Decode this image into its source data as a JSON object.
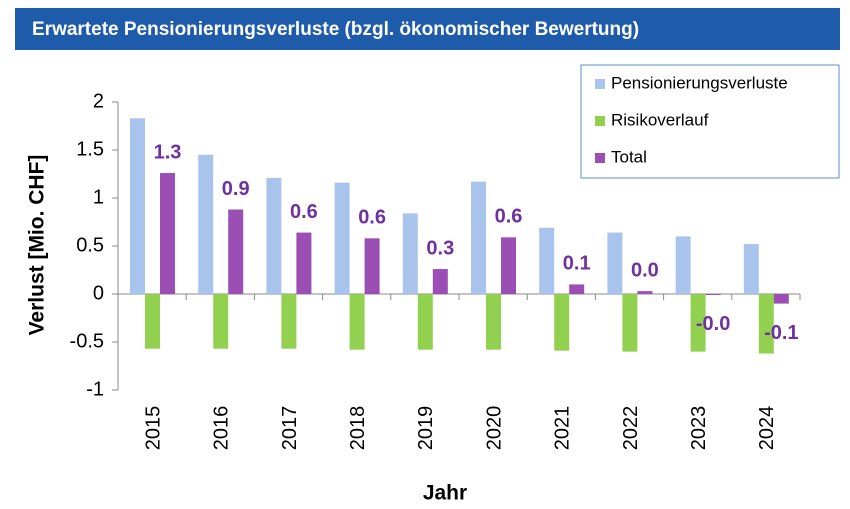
{
  "chart_data": {
    "type": "bar",
    "title": "Erwartete Pensionierungsverluste (bzgl. ökonomischer Bewertung)",
    "y_label": "Verlust [Mio. CHF]",
    "x_label": "Jahr",
    "categories": [
      "2015",
      "2016",
      "2017",
      "2018",
      "2019",
      "2020",
      "2021",
      "2022",
      "2023",
      "2024"
    ],
    "series": [
      {
        "name": "Pensionierungsverluste",
        "color": "#a9c4ec",
        "values": [
          1.83,
          1.45,
          1.21,
          1.16,
          0.84,
          1.17,
          0.69,
          0.64,
          0.6,
          0.52
        ]
      },
      {
        "name": "Risikoverlauf",
        "color": "#92d050",
        "values": [
          -0.57,
          -0.57,
          -0.57,
          -0.58,
          -0.58,
          -0.58,
          -0.59,
          -0.6,
          -0.6,
          -0.62
        ]
      },
      {
        "name": "Total",
        "color": "#9b4fb5",
        "values": [
          1.26,
          0.88,
          0.64,
          0.58,
          0.26,
          0.59,
          0.1,
          0.03,
          -0.01,
          -0.1
        ],
        "value_labels": [
          "1.3",
          "0.9",
          "0.6",
          "0.6",
          "0.3",
          "0.6",
          "0.1",
          "0.0",
          "-0.0",
          "-0.1"
        ]
      }
    ],
    "ylim": [
      -1,
      2
    ],
    "yticks": [
      -1,
      -0.5,
      0,
      0.5,
      1,
      1.5,
      2
    ],
    "grid": false,
    "legend": "top-right"
  }
}
